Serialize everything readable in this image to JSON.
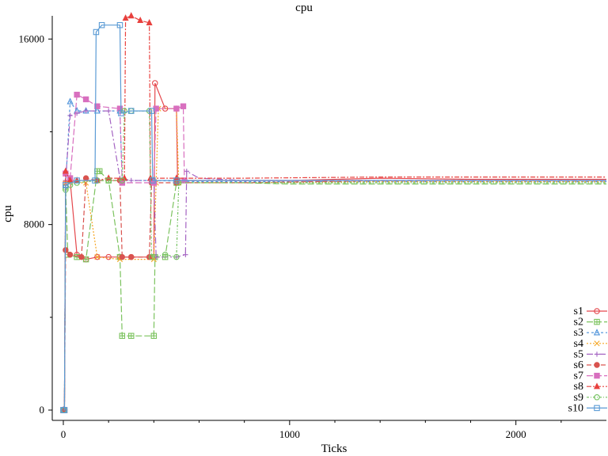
{
  "chart_data": {
    "type": "line",
    "title": "cpu",
    "xlabel": "Ticks",
    "ylabel": "cpu",
    "xlim": [
      0,
      2400
    ],
    "ylim": [
      0,
      17000
    ],
    "x_ticks": [
      0,
      1000,
      2000
    ],
    "x_tick_labels": [
      "0",
      "1000",
      "2000"
    ],
    "y_ticks": [
      0,
      8000,
      16000
    ],
    "y_tick_labels": [
      "0",
      "8000",
      "16000"
    ],
    "grid": false,
    "legend_position": "bottom-right",
    "series": [
      {
        "name": "s1",
        "color": "#e5484d",
        "marker": "circle-open",
        "dash": "",
        "points": [
          [
            0,
            0
          ],
          [
            5,
            0
          ],
          [
            10,
            9800
          ],
          [
            30,
            9900
          ],
          [
            60,
            6700
          ],
          [
            100,
            6500
          ],
          [
            150,
            6600
          ],
          [
            200,
            6600
          ],
          [
            250,
            6600
          ],
          [
            300,
            6600
          ],
          [
            400,
            6600
          ],
          [
            405,
            14100
          ],
          [
            450,
            13000
          ],
          [
            500,
            13000
          ],
          [
            505,
            9900
          ],
          [
            600,
            9900
          ],
          [
            800,
            9900
          ],
          [
            1000,
            9900
          ],
          [
            1400,
            10000
          ],
          [
            1800,
            9950
          ],
          [
            2400,
            9950
          ]
        ]
      },
      {
        "name": "s2",
        "color": "#7cc35f",
        "marker": "square-plus",
        "dash": "8,3",
        "points": [
          [
            0,
            0
          ],
          [
            5,
            0
          ],
          [
            10,
            9600
          ],
          [
            20,
            6700
          ],
          [
            60,
            6600
          ],
          [
            100,
            6500
          ],
          [
            150,
            10300
          ],
          [
            160,
            10300
          ],
          [
            200,
            9900
          ],
          [
            250,
            6600
          ],
          [
            260,
            3200
          ],
          [
            300,
            3200
          ],
          [
            400,
            3200
          ],
          [
            405,
            6600
          ],
          [
            450,
            6600
          ],
          [
            500,
            9800
          ],
          [
            800,
            9800
          ],
          [
            1000,
            9750
          ],
          [
            1400,
            9750
          ],
          [
            2400,
            9750
          ]
        ]
      },
      {
        "name": "s3",
        "color": "#4a90d9",
        "marker": "triangle-open",
        "dash": "3,3",
        "points": [
          [
            0,
            0
          ],
          [
            5,
            0
          ],
          [
            10,
            9700
          ],
          [
            30,
            13300
          ],
          [
            60,
            12900
          ],
          [
            100,
            12900
          ],
          [
            150,
            12900
          ],
          [
            250,
            12900
          ],
          [
            260,
            9900
          ],
          [
            400,
            9900
          ],
          [
            600,
            9850
          ],
          [
            1000,
            9850
          ],
          [
            1600,
            9850
          ],
          [
            2400,
            9850
          ]
        ]
      },
      {
        "name": "s4",
        "color": "#f5a623",
        "marker": "x",
        "dash": "2,2",
        "points": [
          [
            0,
            0
          ],
          [
            5,
            0
          ],
          [
            10,
            9800
          ],
          [
            100,
            9800
          ],
          [
            150,
            6600
          ],
          [
            250,
            6500
          ],
          [
            400,
            6500
          ],
          [
            410,
            9800
          ],
          [
            420,
            13000
          ],
          [
            500,
            13000
          ],
          [
            510,
            9800
          ],
          [
            800,
            9800
          ],
          [
            1400,
            9850
          ],
          [
            2400,
            9850
          ]
        ]
      },
      {
        "name": "s5",
        "color": "#a463c2",
        "marker": "plus",
        "dash": "8,3,2,3",
        "points": [
          [
            0,
            0
          ],
          [
            5,
            0
          ],
          [
            10,
            9900
          ],
          [
            30,
            12700
          ],
          [
            60,
            12800
          ],
          [
            100,
            12900
          ],
          [
            200,
            12900
          ],
          [
            250,
            10000
          ],
          [
            300,
            9900
          ],
          [
            400,
            9900
          ],
          [
            410,
            6600
          ],
          [
            500,
            6600
          ],
          [
            540,
            6700
          ],
          [
            545,
            10300
          ],
          [
            600,
            10000
          ],
          [
            800,
            9900
          ],
          [
            1400,
            9900
          ],
          [
            2400,
            9900
          ]
        ]
      },
      {
        "name": "s6",
        "color": "#d9534f",
        "marker": "circle-filled",
        "dash": "6,3",
        "points": [
          [
            0,
            0
          ],
          [
            5,
            0
          ],
          [
            10,
            6900
          ],
          [
            30,
            6700
          ],
          [
            80,
            6600
          ],
          [
            100,
            10000
          ],
          [
            150,
            9900
          ],
          [
            250,
            9900
          ],
          [
            260,
            6600
          ],
          [
            300,
            6600
          ],
          [
            380,
            6600
          ],
          [
            390,
            9800
          ],
          [
            500,
            9800
          ],
          [
            800,
            9800
          ],
          [
            1400,
            9900
          ],
          [
            2400,
            9900
          ]
        ]
      },
      {
        "name": "s7",
        "color": "#d86fbf",
        "marker": "square-filled",
        "dash": "8,3",
        "points": [
          [
            0,
            0
          ],
          [
            5,
            0
          ],
          [
            10,
            10200
          ],
          [
            30,
            10000
          ],
          [
            60,
            13600
          ],
          [
            100,
            13400
          ],
          [
            150,
            13100
          ],
          [
            250,
            13000
          ],
          [
            260,
            9800
          ],
          [
            400,
            9800
          ],
          [
            410,
            13000
          ],
          [
            500,
            13000
          ],
          [
            530,
            13100
          ],
          [
            535,
            9900
          ],
          [
            800,
            9900
          ],
          [
            1400,
            9900
          ],
          [
            2400,
            9900
          ]
        ]
      },
      {
        "name": "s8",
        "color": "#e8413e",
        "marker": "triangle-filled",
        "dash": "6,2,2,2",
        "points": [
          [
            0,
            0
          ],
          [
            5,
            0
          ],
          [
            10,
            10300
          ],
          [
            30,
            9900
          ],
          [
            60,
            9900
          ],
          [
            150,
            9900
          ],
          [
            200,
            10000
          ],
          [
            270,
            10000
          ],
          [
            275,
            16900
          ],
          [
            300,
            17000
          ],
          [
            340,
            16800
          ],
          [
            380,
            16700
          ],
          [
            385,
            10000
          ],
          [
            500,
            10000
          ],
          [
            800,
            10000
          ],
          [
            1400,
            10050
          ],
          [
            2400,
            10050
          ]
        ]
      },
      {
        "name": "s9",
        "color": "#73c25f",
        "marker": "circle-open",
        "dash": "3,2,1,2",
        "points": [
          [
            0,
            0
          ],
          [
            5,
            0
          ],
          [
            10,
            9500
          ],
          [
            30,
            9700
          ],
          [
            60,
            9800
          ],
          [
            150,
            9900
          ],
          [
            200,
            9900
          ],
          [
            260,
            9900
          ],
          [
            270,
            12900
          ],
          [
            300,
            12900
          ],
          [
            380,
            12900
          ],
          [
            390,
            6600
          ],
          [
            450,
            6700
          ],
          [
            500,
            6600
          ],
          [
            510,
            9800
          ],
          [
            800,
            9800
          ],
          [
            1400,
            9800
          ],
          [
            2400,
            9800
          ]
        ]
      },
      {
        "name": "s10",
        "color": "#5b9bd5",
        "marker": "square-open",
        "dash": "",
        "points": [
          [
            0,
            0
          ],
          [
            5,
            0
          ],
          [
            10,
            9700
          ],
          [
            60,
            9900
          ],
          [
            140,
            9900
          ],
          [
            145,
            16300
          ],
          [
            170,
            16600
          ],
          [
            250,
            16600
          ],
          [
            255,
            12800
          ],
          [
            300,
            12900
          ],
          [
            390,
            12900
          ],
          [
            395,
            9900
          ],
          [
            500,
            9900
          ],
          [
            800,
            9900
          ],
          [
            1400,
            9900
          ],
          [
            2400,
            9900
          ]
        ]
      }
    ]
  }
}
